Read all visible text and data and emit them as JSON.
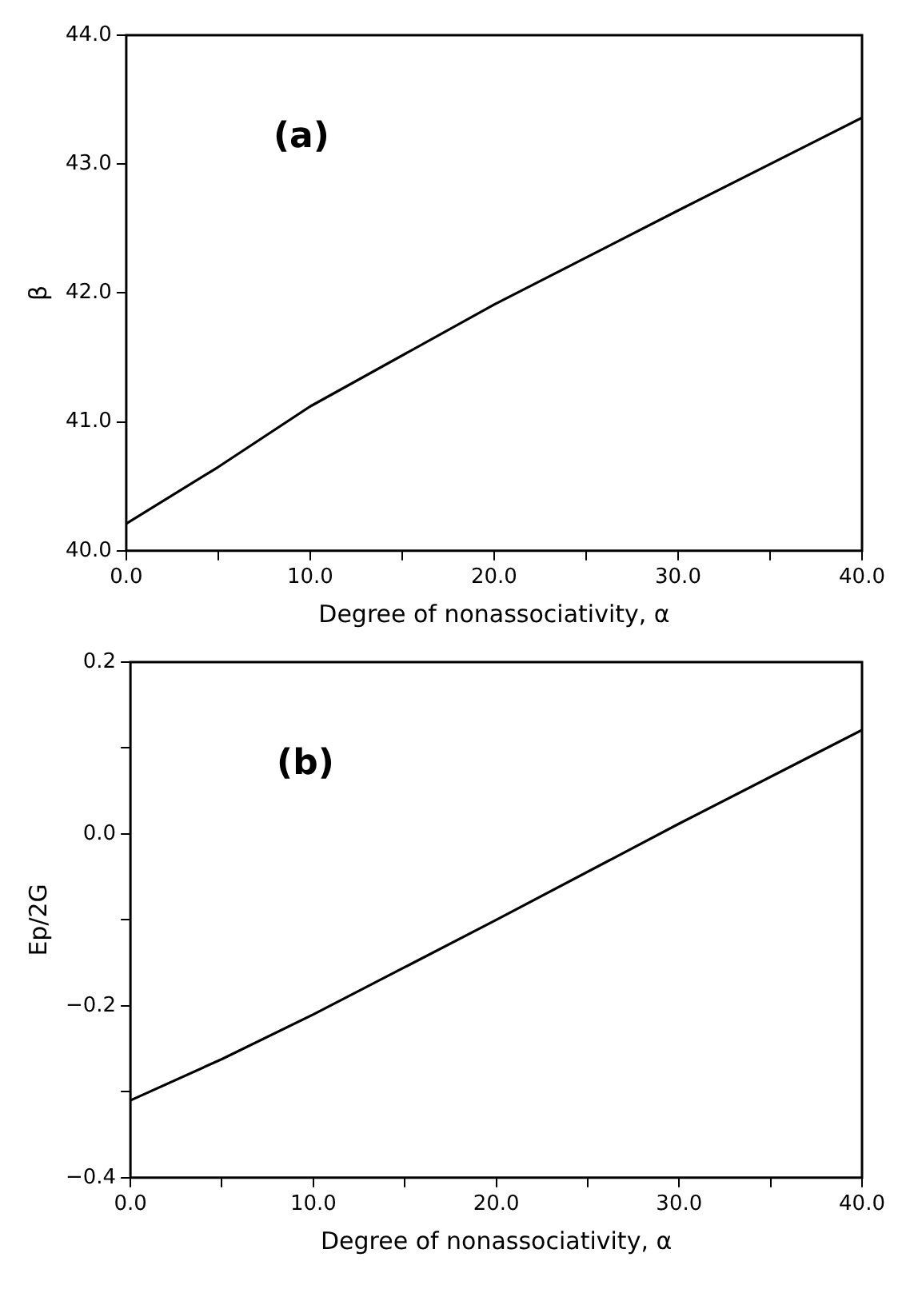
{
  "chart_data": [
    {
      "type": "line",
      "annotations": [
        "(a)"
      ],
      "xlabel": "Degree of nonassociativity, α",
      "ylabel": "β",
      "x": [
        0,
        5,
        10,
        20,
        30,
        40
      ],
      "series": [
        {
          "color": "#000000",
          "values": [
            40.21,
            40.65,
            41.12,
            41.91,
            42.64,
            43.36
          ]
        }
      ],
      "xlim": [
        0,
        40
      ],
      "ylim": [
        40,
        44
      ],
      "xticks": [
        {
          "value": 0,
          "label": "0.0"
        },
        {
          "value": 5,
          "label": null
        },
        {
          "value": 10,
          "label": "10.0"
        },
        {
          "value": 15,
          "label": null
        },
        {
          "value": 20,
          "label": "20.0"
        },
        {
          "value": 25,
          "label": null
        },
        {
          "value": 30,
          "label": "30.0"
        },
        {
          "value": 35,
          "label": null
        },
        {
          "value": 40,
          "label": "40.0"
        }
      ],
      "yticks": [
        {
          "value": 40,
          "label": "40.0"
        },
        {
          "value": 41,
          "label": "41.0"
        },
        {
          "value": 42,
          "label": "42.0"
        },
        {
          "value": 43,
          "label": "43.0"
        },
        {
          "value": 44,
          "label": "44.0"
        }
      ],
      "legend": false,
      "marker": "none",
      "line_style": "solid"
    },
    {
      "type": "line",
      "annotations": [
        "(b)"
      ],
      "xlabel": "Degree of nonassociativity, α",
      "ylabel": "Ep/2G",
      "x": [
        0,
        5,
        10,
        20,
        30,
        40
      ],
      "series": [
        {
          "color": "#000000",
          "values": [
            -0.31,
            -0.262,
            -0.21,
            -0.1,
            0.012,
            0.121
          ]
        }
      ],
      "xlim": [
        0,
        40
      ],
      "ylim": [
        -0.4,
        0.2
      ],
      "xticks": [
        {
          "value": 0,
          "label": "0.0"
        },
        {
          "value": 5,
          "label": null
        },
        {
          "value": 10,
          "label": "10.0"
        },
        {
          "value": 15,
          "label": null
        },
        {
          "value": 20,
          "label": "20.0"
        },
        {
          "value": 25,
          "label": null
        },
        {
          "value": 30,
          "label": "30.0"
        },
        {
          "value": 35,
          "label": null
        },
        {
          "value": 40,
          "label": "40.0"
        }
      ],
      "yticks": [
        {
          "value": -0.4,
          "label": "−0.4"
        },
        {
          "value": -0.3,
          "label": null
        },
        {
          "value": -0.2,
          "label": "−0.2"
        },
        {
          "value": -0.1,
          "label": null
        },
        {
          "value": 0,
          "label": "0.0"
        },
        {
          "value": 0.1,
          "label": null
        },
        {
          "value": 0.2,
          "label": "0.2"
        }
      ],
      "legend": false,
      "marker": "none",
      "line_style": "solid"
    }
  ]
}
